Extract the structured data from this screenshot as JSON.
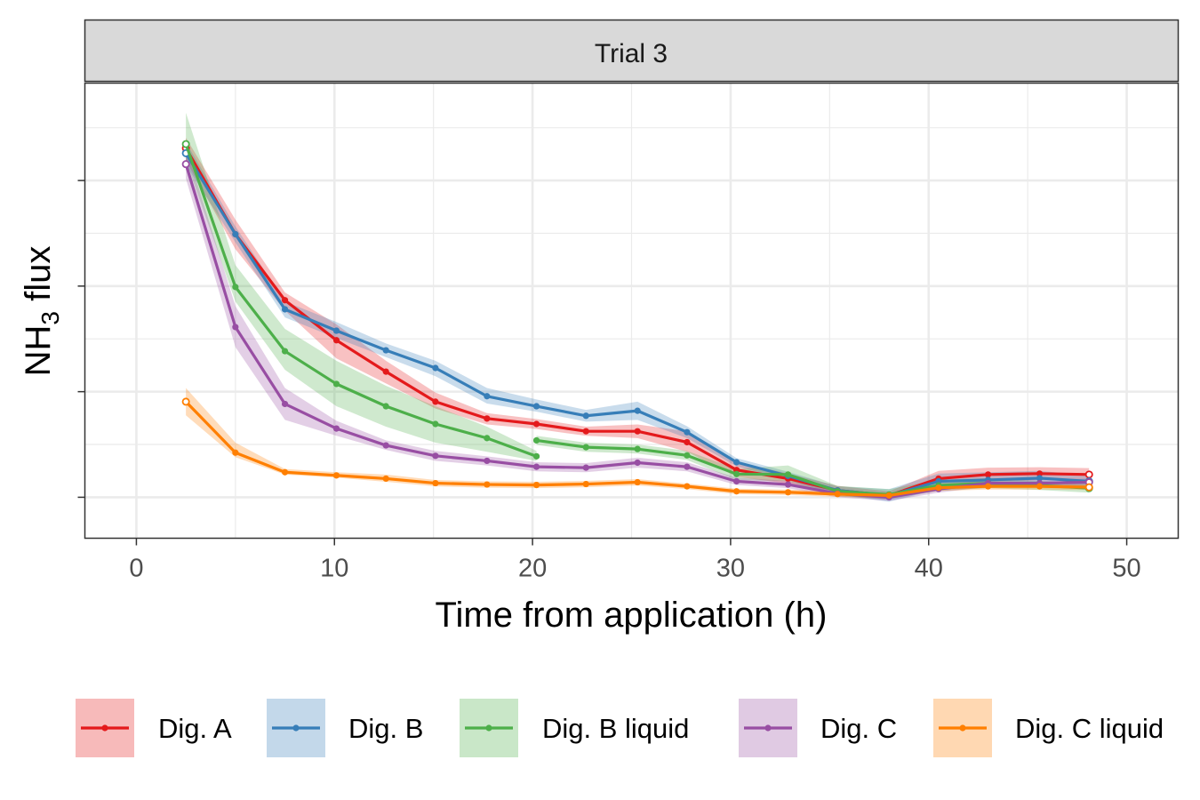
{
  "chart_data": {
    "type": "line",
    "facet_label": "Trial 3",
    "xlabel": "Time from application (h)",
    "ylabel_main": "NH",
    "ylabel_sub": "3",
    "ylabel_tail": " flux",
    "xlim": [
      -2.6,
      52.6
    ],
    "ylim": [
      0,
      1
    ],
    "x_ticks": [
      0,
      10,
      20,
      30,
      40,
      50
    ],
    "x_tick_labels": [
      "0",
      "10",
      "20",
      "30",
      "40",
      "50"
    ],
    "y_ticks_unlabeled": true,
    "grid": true,
    "legend_position": "bottom",
    "colors": {
      "Dig. A": "#E41A1C",
      "Dig. B": "#377EB8",
      "Dig. B liquid": "#4DAF4A",
      "Dig. C": "#984EA3",
      "Dig. C liquid": "#FF7F00"
    },
    "series": [
      {
        "name": "Dig. A",
        "segments": [
          {
            "x": [
              2.5,
              5.0,
              7.5,
              10.1,
              12.6,
              15.1,
              17.7,
              20.2,
              22.7,
              25.3,
              27.8,
              30.3,
              32.9,
              35.4,
              38.0,
              40.5,
              43.0,
              45.6,
              48.1
            ],
            "y": [
              0.857,
              0.668,
              0.523,
              0.435,
              0.366,
              0.3,
              0.263,
              0.251,
              0.235,
              0.235,
              0.211,
              0.15,
              0.131,
              0.105,
              0.094,
              0.131,
              0.14,
              0.142,
              0.14
            ],
            "lo": [
              0.83,
              0.635,
              0.5,
              0.395,
              0.34,
              0.285,
              0.25,
              0.24,
              0.225,
              0.22,
              0.19,
              0.135,
              0.12,
              0.095,
              0.085,
              0.115,
              0.125,
              0.128,
              0.126
            ],
            "hi": [
              0.88,
              0.7,
              0.54,
              0.47,
              0.39,
              0.32,
              0.275,
              0.262,
              0.245,
              0.25,
              0.235,
              0.168,
              0.142,
              0.115,
              0.103,
              0.148,
              0.155,
              0.156,
              0.154
            ]
          }
        ]
      },
      {
        "name": "Dig. B",
        "segments": [
          {
            "x": [
              2.5,
              5.0,
              7.5,
              10.1,
              12.6,
              15.1,
              17.7,
              20.2,
              22.7,
              25.3,
              27.8,
              30.3,
              32.9,
              35.4,
              38.0,
              40.5,
              43.0,
              45.6,
              48.1
            ],
            "y": [
              0.846,
              0.668,
              0.503,
              0.456,
              0.413,
              0.374,
              0.312,
              0.29,
              0.269,
              0.28,
              0.233,
              0.167,
              0.137,
              0.105,
              0.094,
              0.125,
              0.128,
              0.132,
              0.125
            ],
            "lo": [
              0.82,
              0.65,
              0.485,
              0.44,
              0.398,
              0.356,
              0.296,
              0.278,
              0.256,
              0.26,
              0.22,
              0.158,
              0.128,
              0.096,
              0.08,
              0.108,
              0.11,
              0.116,
              0.112
            ],
            "hi": [
              0.87,
              0.685,
              0.52,
              0.475,
              0.428,
              0.39,
              0.33,
              0.305,
              0.282,
              0.3,
              0.246,
              0.176,
              0.146,
              0.114,
              0.108,
              0.142,
              0.145,
              0.148,
              0.138
            ]
          }
        ]
      },
      {
        "name": "Dig. B liquid",
        "segments": [
          {
            "x": [
              2.5,
              5.0,
              7.5,
              10.1,
              12.6,
              15.1,
              17.7,
              20.2
            ],
            "y": [
              0.866,
              0.552,
              0.411,
              0.339,
              0.29,
              0.251,
              0.22,
              0.18
            ],
            "lo": [
              0.83,
              0.52,
              0.37,
              0.29,
              0.245,
              0.21,
              0.19,
              0.17
            ],
            "hi": [
              0.935,
              0.6,
              0.46,
              0.39,
              0.335,
              0.29,
              0.245,
              0.192
            ]
          },
          {
            "x": [
              20.2,
              22.7,
              25.3,
              27.8,
              30.3,
              32.9,
              35.4,
              38.0,
              40.5,
              43.0,
              45.6,
              48.1
            ],
            "y": [
              0.215,
              0.2,
              0.196,
              0.182,
              0.141,
              0.14,
              0.103,
              0.096,
              0.116,
              0.121,
              0.116,
              0.11
            ],
            "lo": [
              0.205,
              0.19,
              0.186,
              0.172,
              0.128,
              0.125,
              0.092,
              0.086,
              0.104,
              0.11,
              0.106,
              0.1
            ],
            "hi": [
              0.225,
              0.21,
              0.206,
              0.192,
              0.152,
              0.16,
              0.115,
              0.108,
              0.128,
              0.132,
              0.126,
              0.12
            ]
          }
        ]
      },
      {
        "name": "Dig. C",
        "segments": [
          {
            "x": [
              2.5,
              5.0,
              7.5,
              10.1,
              12.6,
              15.1,
              17.7,
              20.2,
              22.7,
              25.3,
              27.8,
              30.3,
              32.9,
              35.4,
              38.0,
              40.5,
              43.0,
              45.6,
              48.1
            ],
            "y": [
              0.822,
              0.464,
              0.295,
              0.241,
              0.204,
              0.181,
              0.17,
              0.157,
              0.155,
              0.166,
              0.157,
              0.125,
              0.118,
              0.098,
              0.09,
              0.108,
              0.121,
              0.121,
              0.123
            ],
            "lo": [
              0.79,
              0.42,
              0.26,
              0.225,
              0.194,
              0.17,
              0.16,
              0.147,
              0.145,
              0.155,
              0.147,
              0.117,
              0.11,
              0.09,
              0.082,
              0.1,
              0.113,
              0.113,
              0.115
            ],
            "hi": [
              0.86,
              0.51,
              0.33,
              0.258,
              0.215,
              0.192,
              0.18,
              0.167,
              0.165,
              0.177,
              0.167,
              0.133,
              0.126,
              0.106,
              0.098,
              0.116,
              0.129,
              0.129,
              0.131
            ]
          }
        ]
      },
      {
        "name": "Dig. C liquid",
        "segments": [
          {
            "x": [
              2.5,
              5.0,
              7.5,
              10.1,
              12.6,
              15.1,
              17.7,
              20.2,
              22.7,
              25.3,
              27.8,
              30.3,
              32.9,
              35.4,
              38.0,
              40.5,
              43.0,
              45.6,
              48.1
            ],
            "y": [
              0.3,
              0.188,
              0.145,
              0.138,
              0.131,
              0.121,
              0.118,
              0.117,
              0.119,
              0.123,
              0.114,
              0.103,
              0.101,
              0.097,
              0.094,
              0.111,
              0.114,
              0.114,
              0.112
            ],
            "lo": [
              0.27,
              0.178,
              0.14,
              0.133,
              0.124,
              0.114,
              0.111,
              0.11,
              0.112,
              0.116,
              0.108,
              0.097,
              0.095,
              0.091,
              0.088,
              0.104,
              0.107,
              0.107,
              0.106
            ],
            "hi": [
              0.33,
              0.21,
              0.152,
              0.145,
              0.14,
              0.128,
              0.125,
              0.124,
              0.126,
              0.13,
              0.12,
              0.109,
              0.107,
              0.103,
              0.1,
              0.118,
              0.121,
              0.121,
              0.118
            ]
          }
        ]
      }
    ]
  }
}
